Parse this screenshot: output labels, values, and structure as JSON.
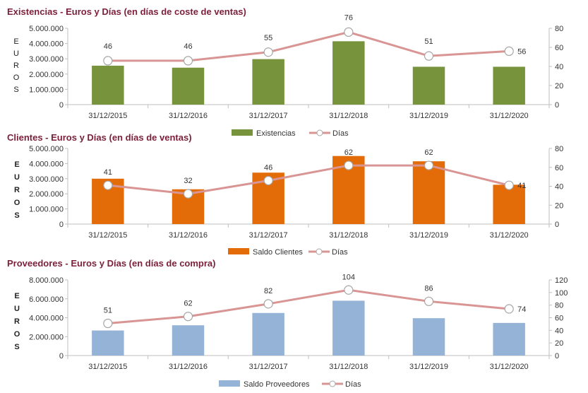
{
  "chart_data": [
    {
      "type": "bar",
      "title": "Existencias - Euros y Días (en días de coste de ventas)",
      "categories": [
        "31/12/2015",
        "31/12/2016",
        "31/12/2017",
        "31/12/2018",
        "31/12/2019",
        "31/12/2020"
      ],
      "ylabel": "EUROS",
      "ylim": [
        0,
        5000000
      ],
      "yticks": [
        0,
        1000000,
        2000000,
        3000000,
        4000000,
        5000000
      ],
      "ytick_labels": [
        "0",
        "1.000.000",
        "2.000.000",
        "3.000.000",
        "4.000.000",
        "5.000.000"
      ],
      "y2lim": [
        0,
        80
      ],
      "y2ticks": [
        0,
        20,
        40,
        60,
        80
      ],
      "y2tick_labels": [
        "0",
        "20",
        "40",
        "60",
        "80"
      ],
      "grid": false,
      "legend": "bottom",
      "series": [
        {
          "name": "Existencias",
          "type": "bar",
          "axis": "left",
          "color": "#77933c",
          "values": [
            2550000,
            2420000,
            2980000,
            4150000,
            2480000,
            2480000
          ]
        },
        {
          "name": "Días",
          "type": "line",
          "axis": "right",
          "color": "#d99594",
          "values": [
            46,
            46,
            55,
            76,
            51,
            56
          ],
          "data_labels": [
            "46",
            "46",
            "55",
            "76",
            "51",
            "56"
          ]
        }
      ]
    },
    {
      "type": "bar",
      "title": "Clientes - Euros y Días (en días de ventas)",
      "categories": [
        "31/12/2015",
        "31/12/2016",
        "31/12/2017",
        "31/12/2018",
        "31/12/2019",
        "31/12/2020"
      ],
      "ylabel": "EUROS",
      "ylim": [
        0,
        5000000
      ],
      "yticks": [
        0,
        1000000,
        2000000,
        3000000,
        4000000,
        5000000
      ],
      "ytick_labels": [
        "0",
        "1.000.000",
        "2.000.000",
        "3.000.000",
        "4.000.000",
        "5.000.000"
      ],
      "y2lim": [
        0,
        80
      ],
      "y2ticks": [
        0,
        20,
        40,
        60,
        80
      ],
      "y2tick_labels": [
        "0",
        "20",
        "40",
        "60",
        "80"
      ],
      "grid": false,
      "legend": "bottom",
      "series": [
        {
          "name": "Saldo Clientes",
          "type": "bar",
          "axis": "left",
          "color": "#e36c09",
          "values": [
            3000000,
            2300000,
            3400000,
            4500000,
            4150000,
            2600000
          ]
        },
        {
          "name": "Días",
          "type": "line",
          "axis": "right",
          "color": "#d99594",
          "values": [
            41,
            32,
            46,
            62,
            62,
            41
          ],
          "data_labels": [
            "41",
            "32",
            "46",
            "62",
            "62",
            "41"
          ]
        }
      ]
    },
    {
      "type": "bar",
      "title": "Proveedores - Euros y Días (en días de compra)",
      "categories": [
        "31/12/2015",
        "31/12/2016",
        "31/12/2017",
        "31/12/2018",
        "31/12/2019",
        "31/12/2020"
      ],
      "ylabel": "EUROS",
      "ylim": [
        0,
        8000000
      ],
      "yticks": [
        0,
        2000000,
        4000000,
        6000000,
        8000000
      ],
      "ytick_labels": [
        "0",
        "2.000.000",
        "4.000.000",
        "6.000.000",
        "8.000.000"
      ],
      "y2lim": [
        0,
        120
      ],
      "y2ticks": [
        0,
        20,
        40,
        60,
        80,
        100,
        120
      ],
      "y2tick_labels": [
        "0",
        "20",
        "40",
        "60",
        "80",
        "100",
        "120"
      ],
      "grid": false,
      "legend": "bottom",
      "series": [
        {
          "name": "Saldo Proveedores",
          "type": "bar",
          "axis": "left",
          "color": "#95b3d7",
          "values": [
            2650000,
            3200000,
            4500000,
            5800000,
            3950000,
            3450000
          ]
        },
        {
          "name": "Días",
          "type": "line",
          "axis": "right",
          "color": "#d99594",
          "values": [
            51,
            62,
            82,
            104,
            86,
            74
          ],
          "data_labels": [
            "51",
            "62",
            "82",
            "104",
            "86",
            "74"
          ]
        }
      ]
    }
  ]
}
